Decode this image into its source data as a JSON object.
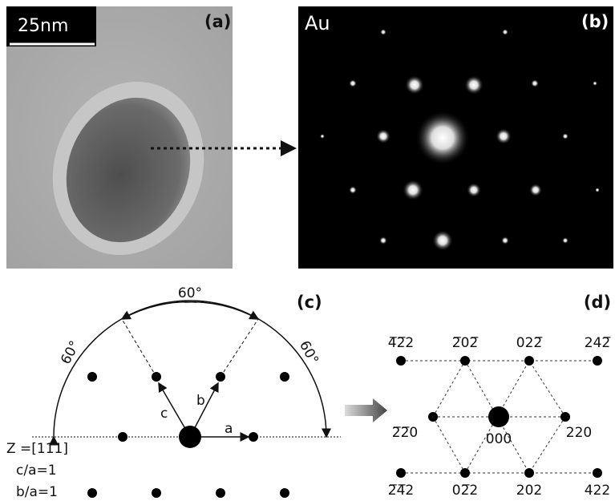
{
  "panels": {
    "a": {
      "label": "(a)",
      "scale_bar": "25nm"
    },
    "b": {
      "label": "(b)",
      "element": "Au"
    },
    "c": {
      "label": "(c)",
      "angles": [
        "60°",
        "60°",
        "60°"
      ],
      "vectors": [
        "a",
        "b",
        "c"
      ],
      "zone": "Z =[111]",
      "ratios": [
        "c/a=1",
        "b/a=1"
      ]
    },
    "d": {
      "label": "(d)",
      "indices": [
        "4̅2̅2",
        "2̅02̅",
        "022̅",
        "242̅",
        "2̅2̅0",
        "000",
        "220",
        "2̅4̅2",
        "02̅2",
        "202",
        "422"
      ]
    }
  }
}
